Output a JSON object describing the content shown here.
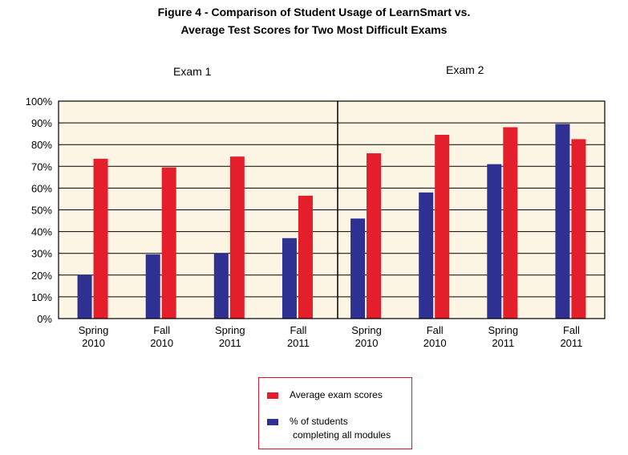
{
  "title_line1": "Figure 4 - Comparison of Student Usage of LearnSmart vs.",
  "title_line2": "Average Test Scores for Two Most Difficult Exams",
  "colors": {
    "exam_scores": "#e41e2b",
    "students": "#2e3192",
    "plot_bg": "#fdf5e4",
    "grid": "#000000",
    "legend_border": "#d8182a"
  },
  "chart_data": {
    "type": "bar",
    "groups": [
      "Exam 1",
      "Exam 2"
    ],
    "categories": [
      [
        "Spring",
        "2010"
      ],
      [
        "Fall",
        "2010"
      ],
      [
        "Spring",
        "2011"
      ],
      [
        "Fall",
        "2011"
      ],
      [
        "Spring",
        "2010"
      ],
      [
        "Fall",
        "2010"
      ],
      [
        "Spring",
        "2011"
      ],
      [
        "Fall",
        "2011"
      ]
    ],
    "y_ticks": [
      "0%",
      "10%",
      "20%",
      "30%",
      "40%",
      "50%",
      "60%",
      "70%",
      "80%",
      "90%",
      "100%"
    ],
    "ylim": [
      0,
      100
    ],
    "grid": true,
    "legend_position": "bottom-center",
    "series": [
      {
        "name": "% of students completing all modules",
        "color_key": "students",
        "values": [
          20,
          29.5,
          30,
          37,
          46,
          58,
          71,
          89.5
        ]
      },
      {
        "name": "Average exam scores",
        "color_key": "exam_scores",
        "values": [
          73.5,
          69.5,
          74.5,
          56.5,
          76,
          84.5,
          88,
          82.5
        ]
      }
    ]
  },
  "legend": {
    "exam_scores_label": "Average exam scores",
    "students_label_line1": "% of students",
    "students_label_line2": "completing all modules"
  }
}
